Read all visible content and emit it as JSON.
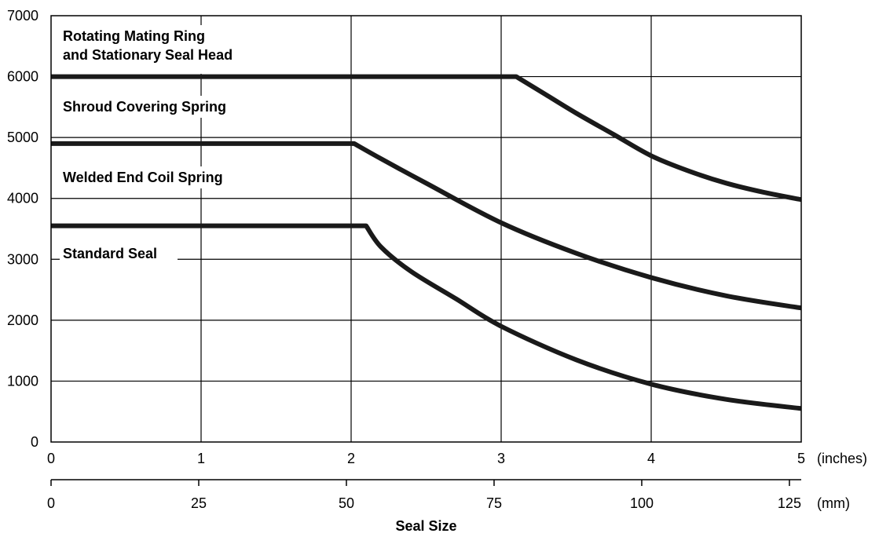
{
  "chart_data": {
    "type": "line",
    "title": "",
    "xlabel": "Seal Size",
    "ylabel": "",
    "x_unit_primary": "(inches)",
    "x_unit_secondary": "(mm)",
    "xlim": [
      0,
      5
    ],
    "ylim": [
      0,
      7000
    ],
    "grid": true,
    "x_ticks": [
      "0",
      "1",
      "2",
      "3",
      "4",
      "5"
    ],
    "x_ticks_mm": [
      "0",
      "25",
      "50",
      "75",
      "100",
      "125"
    ],
    "y_ticks": [
      "0",
      "1000",
      "2000",
      "3000",
      "4000",
      "5000",
      "6000",
      "7000"
    ],
    "series": [
      {
        "name": "Rotating Mating Ring\nand Stationary Seal Head",
        "x": [
          0,
          3.1,
          3.3,
          3.5,
          3.75,
          4.0,
          4.25,
          4.5,
          4.75,
          5.0
        ],
        "y": [
          6000,
          6000,
          5700,
          5400,
          5050,
          4700,
          4450,
          4250,
          4100,
          3980
        ]
      },
      {
        "name": "Shroud Covering Spring",
        "x": [
          0,
          2.02,
          2.2,
          2.5,
          3.0,
          3.5,
          4.0,
          4.5,
          5.0
        ],
        "y": [
          4900,
          4900,
          4650,
          4250,
          3600,
          3100,
          2700,
          2400,
          2200
        ]
      },
      {
        "name": "Welded End Coil Spring",
        "x": [
          0,
          2.1,
          2.2,
          2.4,
          2.7,
          3.0,
          3.5,
          4.0,
          4.5,
          5.0
        ],
        "y": [
          3550,
          3550,
          3200,
          2800,
          2350,
          1900,
          1350,
          950,
          700,
          550
        ]
      },
      {
        "name": "Standard Seal",
        "x": [],
        "y": []
      }
    ]
  }
}
